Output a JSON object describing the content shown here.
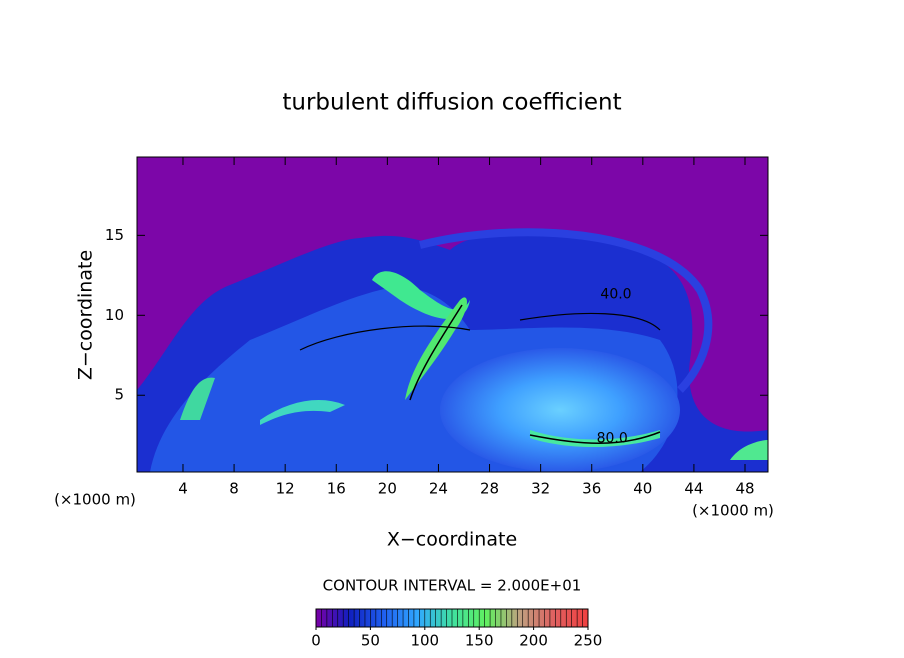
{
  "chart_data": {
    "type": "contour",
    "title": "turbulent diffusion coefficient",
    "xlabel": "X−coordinate",
    "ylabel": "Z−coordinate",
    "xunit": "(×1000 m)",
    "yunit": "(×1000 m)",
    "xlim": [
      0.4,
      49.8
    ],
    "ylim": [
      0.2,
      19.9
    ],
    "xticks": [
      4,
      8,
      12,
      16,
      20,
      24,
      28,
      32,
      36,
      40,
      44,
      48
    ],
    "yticks": [
      5,
      10,
      15
    ],
    "contour_interval": "CONTOUR INTERVAL = 2.000E+01",
    "contour_labels": [
      {
        "x": 37.9,
        "y": 11.3,
        "value": 40,
        "label": "40.0"
      },
      {
        "x": 37.6,
        "y": 2.3,
        "value": 80,
        "label": "80.0"
      }
    ],
    "colorbar": {
      "lim": [
        0,
        250
      ],
      "ticks": [
        0,
        50,
        100,
        150,
        200,
        250
      ],
      "colors": [
        "#7a00a6",
        "#1020c0",
        "#2060f0",
        "#30a8ff",
        "#40e0a0",
        "#60f060",
        "#c0a080",
        "#e06060",
        "#f04040"
      ]
    }
  }
}
